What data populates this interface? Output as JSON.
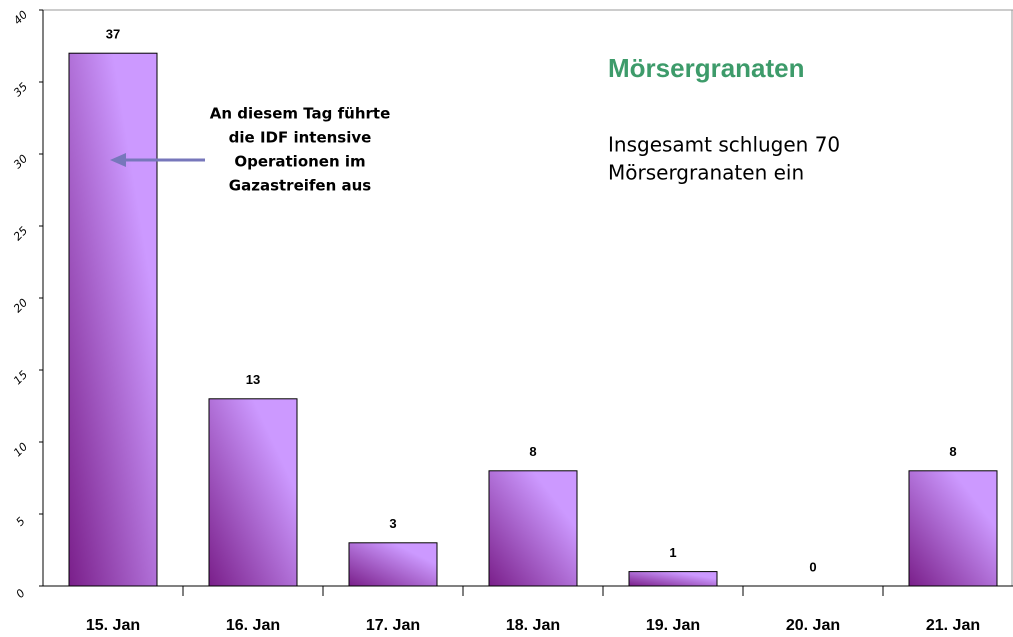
{
  "chart_data": {
    "type": "bar",
    "title": "Mörsergranaten",
    "subtitle_lines": [
      "Insgesamt schlugen 70",
      "Mörsergranaten ein"
    ],
    "annotation_lines": [
      "An diesem Tag führte",
      "die IDF intensive",
      "Operationen im",
      "Gazastreifen aus"
    ],
    "categories": [
      "15. Jan",
      "16. Jan",
      "17. Jan",
      "18. Jan",
      "19. Jan",
      "20. Jan",
      "21. Jan"
    ],
    "values": [
      37,
      13,
      3,
      8,
      1,
      0,
      8
    ],
    "color": "#cc99ff",
    "ylim": [
      0,
      40
    ],
    "yticks": [
      0,
      5,
      10,
      15,
      20,
      25,
      30,
      35,
      40
    ],
    "grid": false
  }
}
